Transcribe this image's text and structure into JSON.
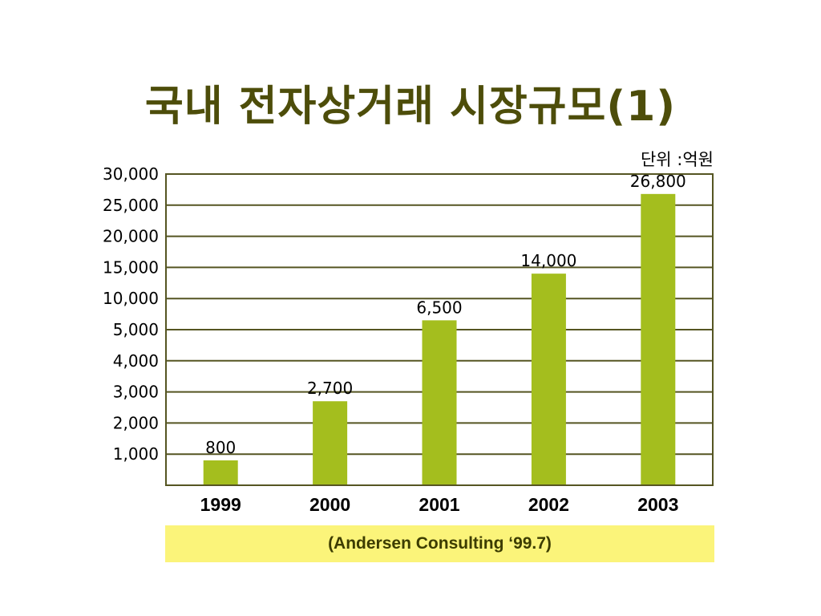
{
  "slide": {
    "title": "국내 전자상거래 시장규모(1)",
    "unit_label": "단위 :억원",
    "source": "(Andersen Consulting ‘99.7)"
  },
  "colors": {
    "title": "#4d4d0a",
    "bar": "#a4be1e",
    "gridline": "#555522",
    "source_bg": "#fbf47a"
  },
  "chart_data": {
    "type": "bar",
    "categories": [
      "1999",
      "2000",
      "2001",
      "2002",
      "2003"
    ],
    "values": [
      800,
      2700,
      6500,
      14000,
      26800
    ],
    "value_labels": [
      "800",
      "2,700",
      "6,500",
      "14,000",
      "26,800"
    ],
    "y_tick_labels": [
      "1,000",
      "2,000",
      "3,000",
      "4,000",
      "5,000",
      "10,000",
      "15,000",
      "20,000",
      "25,000",
      "30,000"
    ],
    "y_tick_values": [
      1000,
      2000,
      3000,
      4000,
      5000,
      10000,
      15000,
      20000,
      25000,
      30000
    ],
    "y_scale": "piecewise: 1,000 per gridline up to 5,000; 5,000 per gridline above",
    "ylim": [
      0,
      30000
    ],
    "grid": true,
    "legend": "none",
    "title": "국내 전자상거래 시장규모(1)",
    "unit": "단위 :억원",
    "xlabel": "",
    "ylabel": ""
  }
}
